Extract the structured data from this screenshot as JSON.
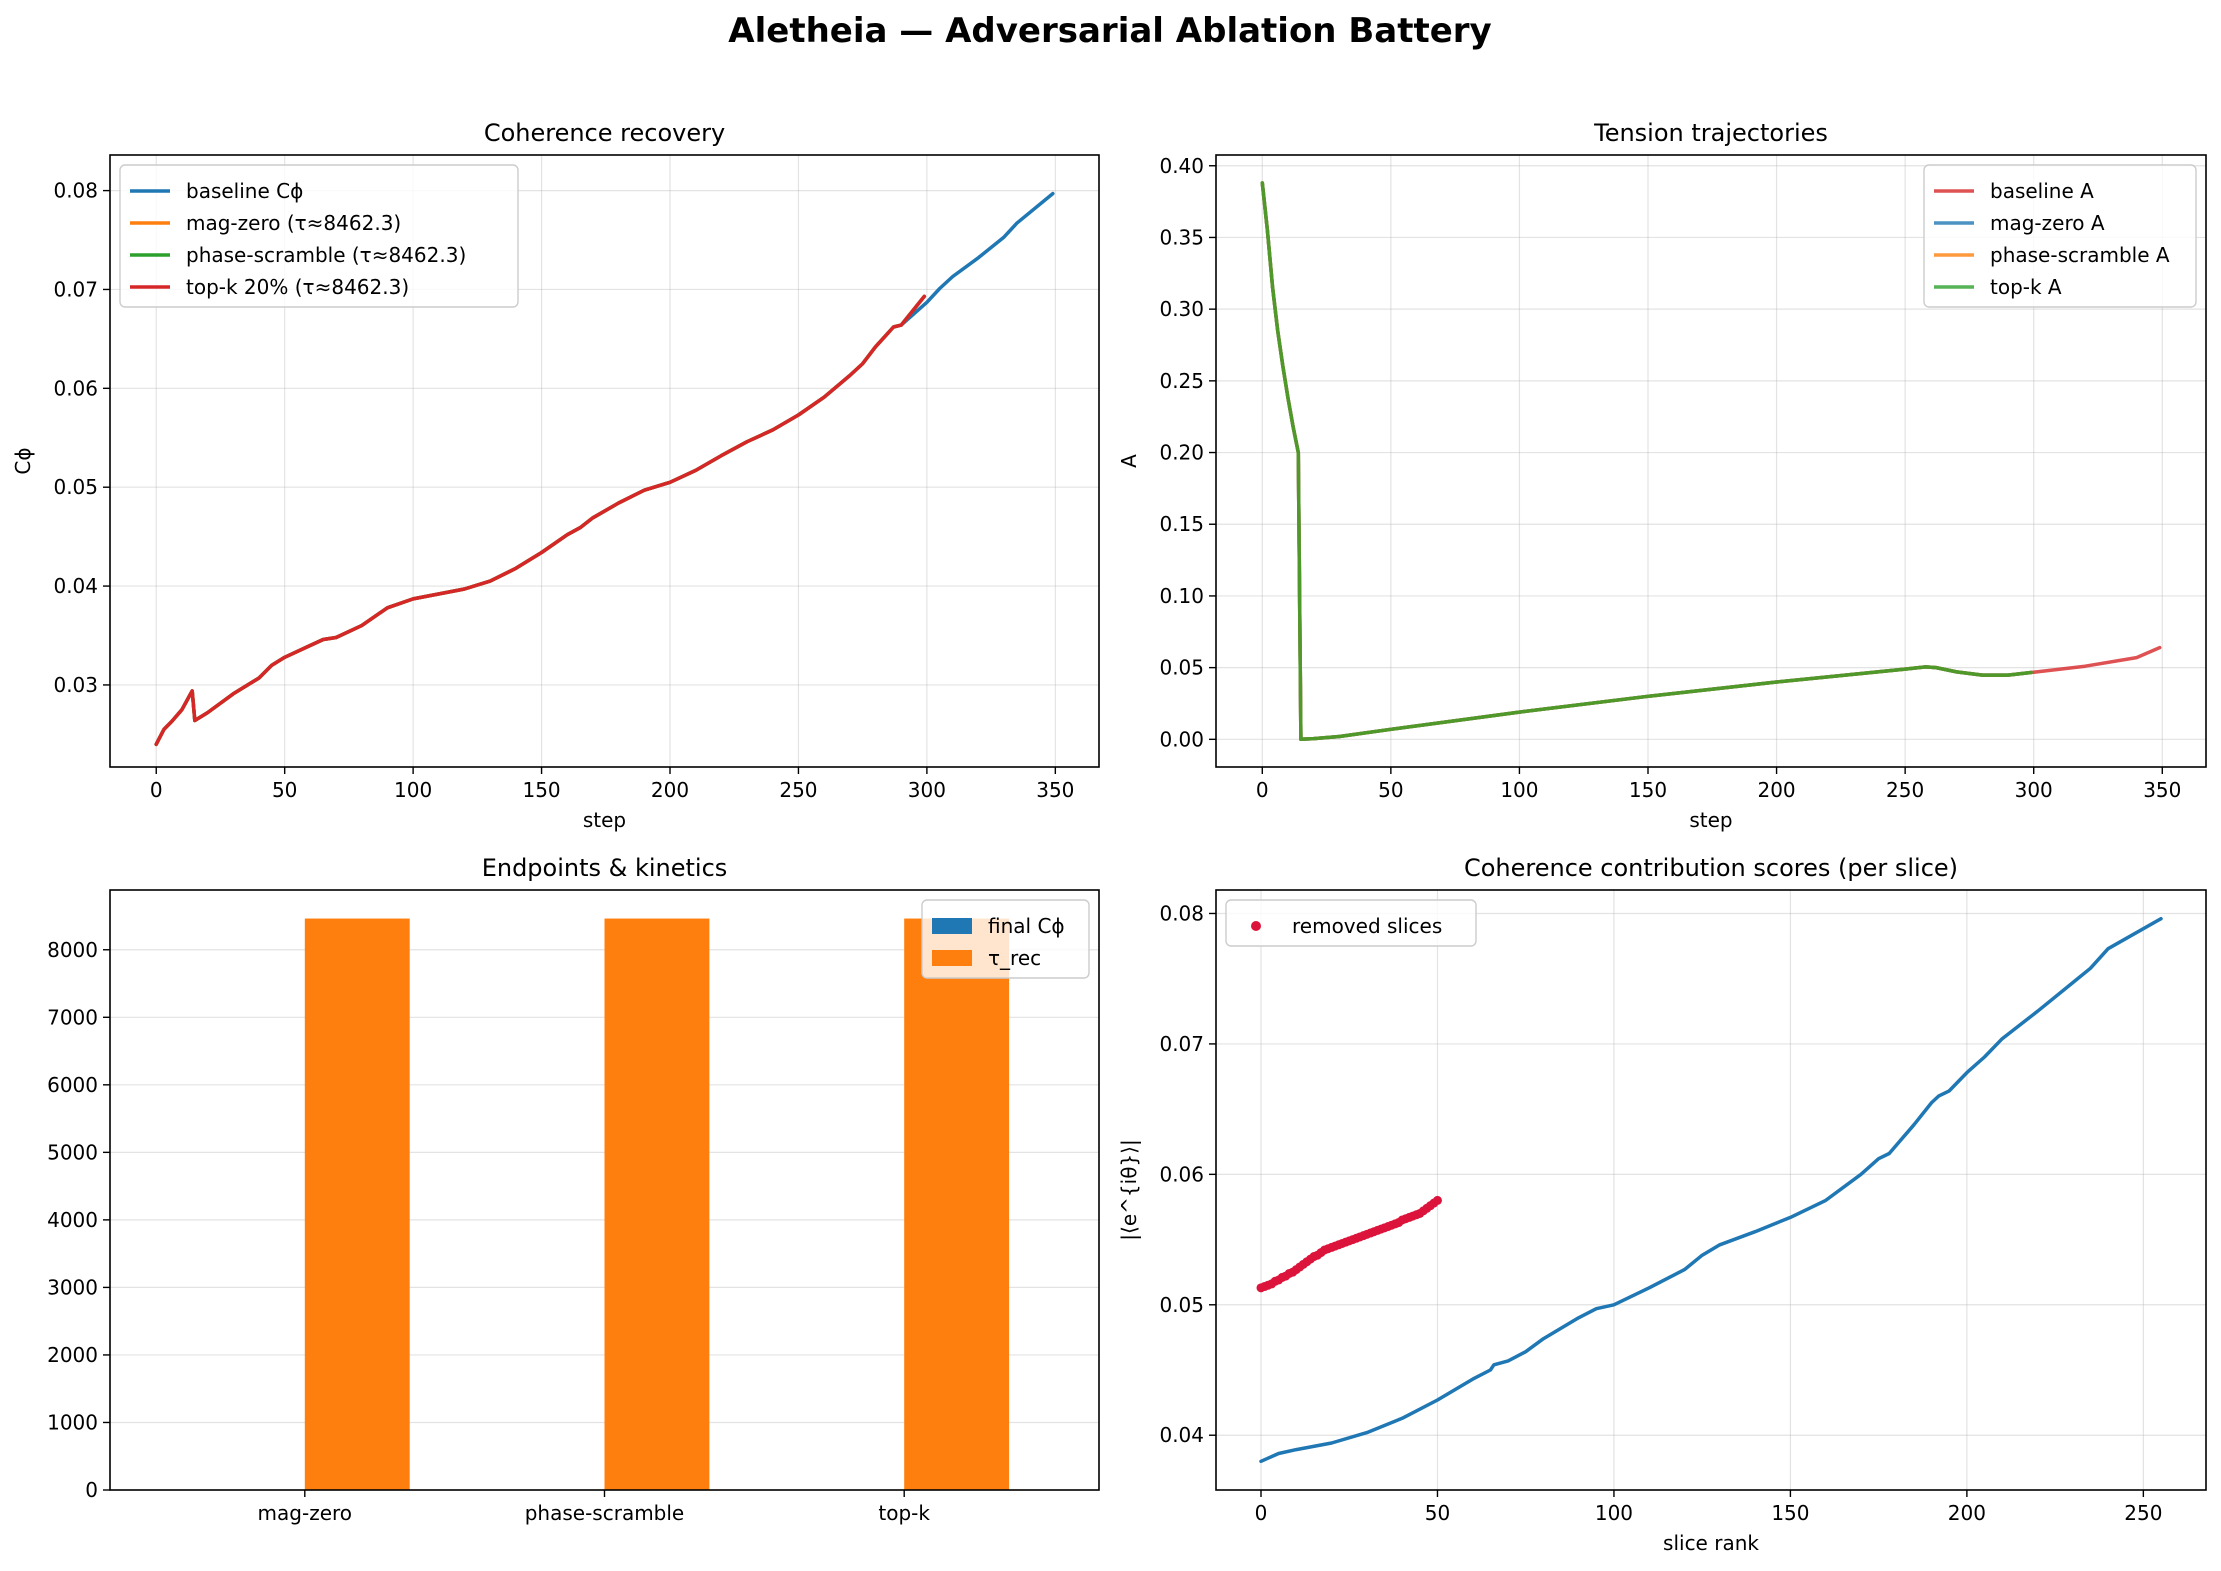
{
  "figure": {
    "title": "Aletheia — Adversarial Ablation Battery"
  },
  "chart_data": [
    {
      "type": "line",
      "title": "Coherence recovery",
      "xlabel": "step",
      "ylabel": "Cϕ",
      "xlim": [
        -18,
        367
      ],
      "ylim": [
        0.0217,
        0.0836
      ],
      "xticks": [
        0,
        50,
        100,
        150,
        200,
        250,
        300,
        350
      ],
      "yticks": [
        0.03,
        0.04,
        0.05,
        0.06,
        0.07,
        0.08
      ],
      "ytick_decimals": 2,
      "grid": true,
      "legend": "upper left",
      "series": [
        {
          "name": "baseline Cϕ",
          "color": "#1f77b4",
          "x": [
            0,
            3,
            6,
            10,
            14,
            15,
            20,
            30,
            40,
            45,
            50,
            60,
            65,
            70,
            80,
            90,
            100,
            120,
            130,
            140,
            150,
            160,
            165,
            170,
            180,
            190,
            200,
            210,
            220,
            230,
            240,
            250,
            260,
            270,
            275,
            280,
            287,
            290,
            300,
            305,
            310,
            320,
            330,
            335,
            349
          ],
          "y": [
            0.024,
            0.0255,
            0.0263,
            0.0275,
            0.0294,
            0.0264,
            0.0272,
            0.0291,
            0.0307,
            0.032,
            0.0328,
            0.034,
            0.0346,
            0.0348,
            0.036,
            0.0378,
            0.0387,
            0.0397,
            0.0405,
            0.0418,
            0.0434,
            0.0452,
            0.0459,
            0.0469,
            0.0484,
            0.0497,
            0.0505,
            0.0517,
            0.0532,
            0.0546,
            0.0558,
            0.0573,
            0.0591,
            0.0613,
            0.0625,
            0.0642,
            0.0662,
            0.0664,
            0.0687,
            0.0701,
            0.0713,
            0.0732,
            0.0753,
            0.0767,
            0.0797
          ]
        },
        {
          "name": "mag-zero (τ≈8462.3)",
          "color": "#ff7f0e",
          "x": [
            0,
            3,
            6,
            10,
            14,
            15,
            20,
            30,
            40,
            45,
            50,
            60,
            65,
            70,
            80,
            90,
            100,
            120,
            130,
            140,
            150,
            160,
            165,
            170,
            180,
            190,
            200,
            210,
            220,
            230,
            240,
            250,
            260,
            270,
            275,
            280,
            287,
            290,
            299
          ],
          "y": [
            0.024,
            0.0255,
            0.0263,
            0.0275,
            0.0294,
            0.0264,
            0.0272,
            0.0291,
            0.0307,
            0.032,
            0.0328,
            0.034,
            0.0346,
            0.0348,
            0.036,
            0.0378,
            0.0387,
            0.0397,
            0.0405,
            0.0418,
            0.0434,
            0.0452,
            0.0459,
            0.0469,
            0.0484,
            0.0497,
            0.0505,
            0.0517,
            0.0532,
            0.0546,
            0.0558,
            0.0573,
            0.0591,
            0.0613,
            0.0625,
            0.0642,
            0.0662,
            0.0664,
            0.0693
          ]
        },
        {
          "name": "phase-scramble (τ≈8462.3)",
          "color": "#2ca02c",
          "x": [
            0,
            3,
            6,
            10,
            14,
            15,
            20,
            30,
            40,
            45,
            50,
            60,
            65,
            70,
            80,
            90,
            100,
            120,
            130,
            140,
            150,
            160,
            165,
            170,
            180,
            190,
            200,
            210,
            220,
            230,
            240,
            250,
            260,
            270,
            275,
            280,
            287,
            290,
            299
          ],
          "y": [
            0.024,
            0.0255,
            0.0263,
            0.0275,
            0.0294,
            0.0264,
            0.0272,
            0.0291,
            0.0307,
            0.032,
            0.0328,
            0.034,
            0.0346,
            0.0348,
            0.036,
            0.0378,
            0.0387,
            0.0397,
            0.0405,
            0.0418,
            0.0434,
            0.0452,
            0.0459,
            0.0469,
            0.0484,
            0.0497,
            0.0505,
            0.0517,
            0.0532,
            0.0546,
            0.0558,
            0.0573,
            0.0591,
            0.0613,
            0.0625,
            0.0642,
            0.0662,
            0.0664,
            0.0693
          ]
        },
        {
          "name": "top-k 20% (τ≈8462.3)",
          "color": "#d62728",
          "x": [
            0,
            3,
            6,
            10,
            14,
            15,
            20,
            30,
            40,
            45,
            50,
            60,
            65,
            70,
            80,
            90,
            100,
            120,
            130,
            140,
            150,
            160,
            165,
            170,
            180,
            190,
            200,
            210,
            220,
            230,
            240,
            250,
            260,
            270,
            275,
            280,
            287,
            290,
            299
          ],
          "y": [
            0.024,
            0.0255,
            0.0263,
            0.0275,
            0.0294,
            0.0264,
            0.0272,
            0.0291,
            0.0307,
            0.032,
            0.0328,
            0.034,
            0.0346,
            0.0348,
            0.036,
            0.0378,
            0.0387,
            0.0397,
            0.0405,
            0.0418,
            0.0434,
            0.0452,
            0.0459,
            0.0469,
            0.0484,
            0.0497,
            0.0505,
            0.0517,
            0.0532,
            0.0546,
            0.0558,
            0.0573,
            0.0591,
            0.0613,
            0.0625,
            0.0642,
            0.0662,
            0.0664,
            0.0693
          ]
        }
      ]
    },
    {
      "type": "line",
      "title": "Tension trajectories",
      "xlabel": "step",
      "ylabel": "A",
      "xlim": [
        -18,
        367
      ],
      "ylim": [
        -0.0193,
        0.4075
      ],
      "xticks": [
        0,
        50,
        100,
        150,
        200,
        250,
        300,
        350
      ],
      "yticks": [
        0.0,
        0.05,
        0.1,
        0.15,
        0.2,
        0.25,
        0.3,
        0.35,
        0.4
      ],
      "ytick_decimals": 2,
      "grid": true,
      "legend": "upper right",
      "series": [
        {
          "name": "baseline A",
          "color": "#d62728",
          "alpha": 0.8,
          "x": [
            0,
            2,
            4,
            6,
            8,
            10,
            12,
            14,
            15,
            20,
            30,
            50,
            100,
            150,
            200,
            250,
            258,
            262,
            270,
            280,
            290,
            300,
            320,
            340,
            349
          ],
          "y": [
            0.388,
            0.355,
            0.315,
            0.285,
            0.26,
            0.238,
            0.218,
            0.2,
            0.0,
            0.0005,
            0.002,
            0.007,
            0.019,
            0.03,
            0.04,
            0.049,
            0.0505,
            0.05,
            0.047,
            0.0448,
            0.0448,
            0.0468,
            0.051,
            0.057,
            0.064
          ]
        },
        {
          "name": "mag-zero A",
          "color": "#1f77b4",
          "alpha": 0.8,
          "x": [
            0,
            2,
            4,
            6,
            8,
            10,
            12,
            14,
            15,
            20,
            30,
            50,
            100,
            150,
            200,
            250,
            258,
            262,
            270,
            280,
            290,
            299
          ],
          "y": [
            0.388,
            0.355,
            0.315,
            0.285,
            0.26,
            0.238,
            0.218,
            0.2,
            0.0,
            0.0005,
            0.002,
            0.007,
            0.019,
            0.03,
            0.04,
            0.049,
            0.0505,
            0.05,
            0.047,
            0.0448,
            0.0448,
            0.0466
          ]
        },
        {
          "name": "phase-scramble A",
          "color": "#ff7f0e",
          "alpha": 0.8,
          "x": [
            0,
            2,
            4,
            6,
            8,
            10,
            12,
            14,
            15,
            20,
            30,
            50,
            100,
            150,
            200,
            250,
            258,
            262,
            270,
            280,
            290,
            299
          ],
          "y": [
            0.388,
            0.355,
            0.315,
            0.285,
            0.26,
            0.238,
            0.218,
            0.2,
            0.0,
            0.0005,
            0.002,
            0.007,
            0.019,
            0.03,
            0.04,
            0.049,
            0.0505,
            0.05,
            0.047,
            0.0448,
            0.0448,
            0.0466
          ]
        },
        {
          "name": "top-k A",
          "color": "#2ca02c",
          "alpha": 0.8,
          "x": [
            0,
            2,
            4,
            6,
            8,
            10,
            12,
            14,
            15,
            20,
            30,
            50,
            100,
            150,
            200,
            250,
            258,
            262,
            270,
            280,
            290,
            299
          ],
          "y": [
            0.388,
            0.355,
            0.315,
            0.285,
            0.26,
            0.238,
            0.218,
            0.2,
            0.0,
            0.0005,
            0.002,
            0.007,
            0.019,
            0.03,
            0.04,
            0.049,
            0.0505,
            0.05,
            0.047,
            0.0448,
            0.0448,
            0.0466
          ]
        }
      ]
    },
    {
      "type": "bar",
      "title": "Endpoints & kinetics",
      "xlabel": "",
      "ylabel": "",
      "categories": [
        "mag-zero",
        "phase-scramble",
        "top-k"
      ],
      "ylim": [
        0,
        8885
      ],
      "yticks": [
        0,
        1000,
        2000,
        3000,
        4000,
        5000,
        6000,
        7000,
        8000
      ],
      "ytick_decimals": 0,
      "grid": true,
      "legend": "upper right",
      "series": [
        {
          "name": "final Cϕ",
          "color": "#1f77b4",
          "values": [
            0.0693,
            0.0693,
            0.0693
          ]
        },
        {
          "name": "τ_rec",
          "color": "#ff7f0e",
          "values": [
            8462.3,
            8462.3,
            8462.3
          ]
        }
      ]
    },
    {
      "type": "line",
      "title": "Coherence contribution scores (per slice)",
      "xlabel": "slice rank",
      "ylabel": "|⟨e^{iθ}⟩|",
      "xlim": [
        -12.75,
        267.75
      ],
      "ylim": [
        0.0358,
        0.0818
      ],
      "xticks": [
        0,
        50,
        100,
        150,
        200,
        250
      ],
      "yticks": [
        0.04,
        0.05,
        0.06,
        0.07,
        0.08
      ],
      "ytick_decimals": 2,
      "grid": true,
      "legend": "upper left",
      "series": [
        {
          "name": "",
          "color": "#1f77b4",
          "x": [
            0,
            5,
            10,
            20,
            30,
            40,
            50,
            60,
            65,
            66,
            70,
            75,
            80,
            90,
            95,
            100,
            110,
            120,
            125,
            130,
            140,
            150,
            160,
            170,
            175,
            178,
            185,
            190,
            192,
            195,
            200,
            205,
            210,
            220,
            230,
            235,
            240,
            255
          ],
          "y": [
            0.038,
            0.0386,
            0.0389,
            0.0394,
            0.0402,
            0.0413,
            0.0427,
            0.0443,
            0.045,
            0.0454,
            0.0457,
            0.0464,
            0.0474,
            0.049,
            0.0497,
            0.05,
            0.0513,
            0.0527,
            0.0538,
            0.0546,
            0.0556,
            0.0567,
            0.058,
            0.06,
            0.0612,
            0.0616,
            0.0638,
            0.0655,
            0.066,
            0.0664,
            0.0678,
            0.069,
            0.0704,
            0.0725,
            0.0747,
            0.0758,
            0.0773,
            0.0796
          ]
        },
        {
          "name": "removed slices",
          "color": "#dc143c",
          "marker": "dot",
          "x": [
            0,
            1,
            2,
            3,
            4,
            5,
            6,
            7,
            8,
            9,
            10,
            11,
            12,
            13,
            14,
            15,
            16,
            17,
            18,
            19,
            20,
            21,
            22,
            23,
            24,
            25,
            26,
            27,
            28,
            29,
            30,
            31,
            32,
            33,
            34,
            35,
            36,
            37,
            38,
            39,
            40,
            41,
            42,
            43,
            44,
            45,
            46,
            47,
            48,
            49,
            50
          ],
          "y": [
            0.0513,
            0.0514,
            0.0515,
            0.0516,
            0.0518,
            0.0519,
            0.0521,
            0.0522,
            0.0524,
            0.0525,
            0.0527,
            0.0529,
            0.0531,
            0.0533,
            0.0535,
            0.0537,
            0.0538,
            0.054,
            0.0542,
            0.0543,
            0.0544,
            0.0545,
            0.0546,
            0.0547,
            0.0548,
            0.0549,
            0.055,
            0.0551,
            0.0552,
            0.0553,
            0.0554,
            0.0555,
            0.0556,
            0.0557,
            0.0558,
            0.0559,
            0.056,
            0.0561,
            0.0562,
            0.0563,
            0.0565,
            0.0566,
            0.0567,
            0.0568,
            0.0569,
            0.057,
            0.0572,
            0.0574,
            0.0576,
            0.0578,
            0.058
          ]
        }
      ]
    }
  ]
}
